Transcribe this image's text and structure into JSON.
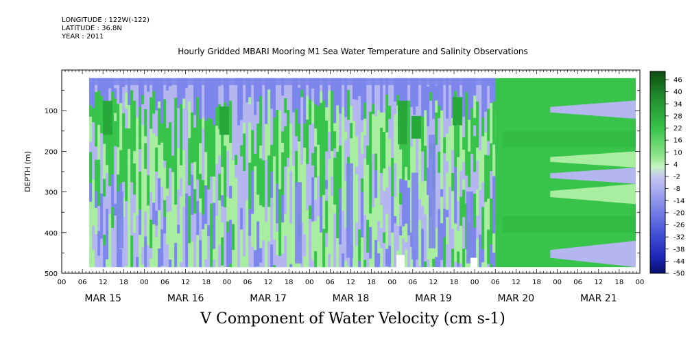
{
  "header": {
    "longitude": "LONGITUDE : 122W(-122)",
    "latitude": "LATITUDE : 36.8N",
    "year": "YEAR : 2011"
  },
  "chart_data": {
    "type": "heatmap",
    "title": "Hourly Gridded MBARI Mooring M1 Sea Water Temperature and Salinity Observations",
    "ylabel": "DEPTH (m)",
    "xlabel": "V Component of Water Velocity (cm s-1)",
    "ylim": [
      500,
      0
    ],
    "y_ticks": [
      "100",
      "200",
      "300",
      "400",
      "500"
    ],
    "x_hour_ticks": [
      "00",
      "06",
      "12",
      "18",
      "00",
      "06",
      "12",
      "18",
      "00",
      "06",
      "12",
      "18",
      "00",
      "06",
      "12",
      "18",
      "00",
      "06",
      "12",
      "18",
      "00",
      "06",
      "12",
      "18",
      "00",
      "06",
      "12",
      "18",
      "00"
    ],
    "day_labels": [
      "MAR 15",
      "MAR 16",
      "MAR 17",
      "MAR 18",
      "MAR 19",
      "MAR 20",
      "MAR 21"
    ],
    "colorbar_levels": [
      "46",
      "40",
      "34",
      "28",
      "22",
      "16",
      "10",
      "4",
      "-2",
      "-8",
      "-14",
      "-20",
      "-26",
      "-32",
      "-38",
      "-44",
      "-50"
    ],
    "colors": {
      "strong_positive": "#1f6e1f",
      "positive": "#38c34a",
      "weak_positive": "#a9eea0",
      "weak_negative": "#b4b6f0",
      "negative": "#7d86ea",
      "strong_negative": "#1a23c8"
    }
  }
}
